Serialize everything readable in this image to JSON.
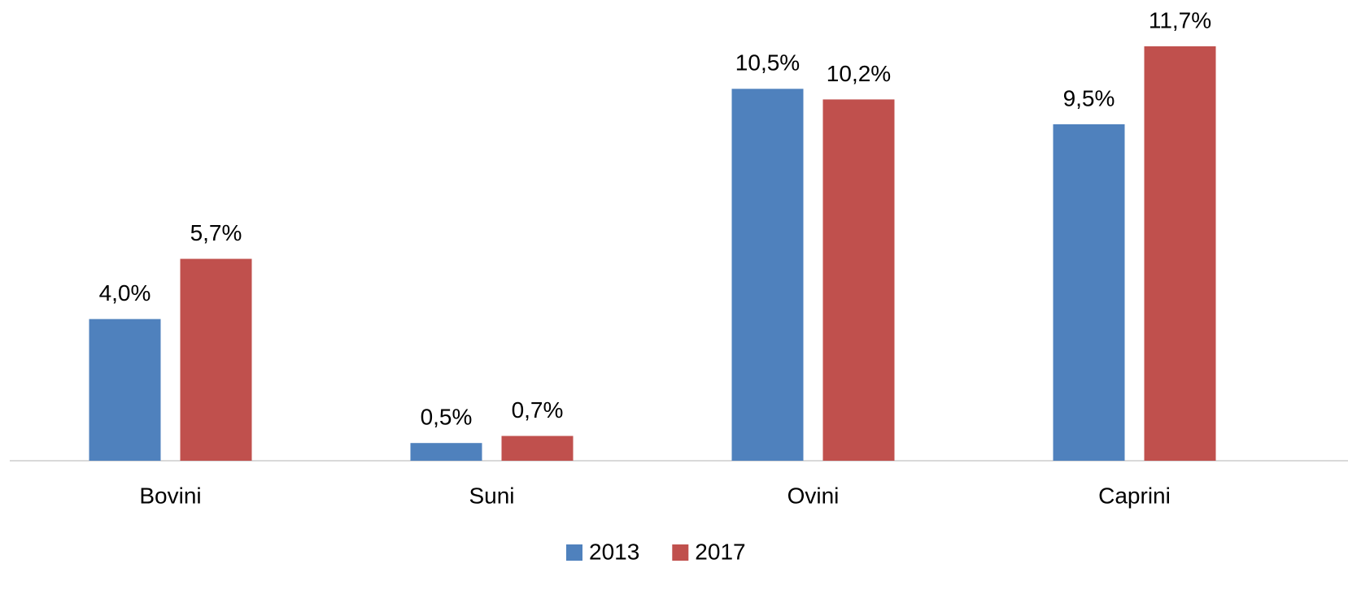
{
  "chart_data": {
    "type": "bar",
    "categories": [
      "Bovini",
      "Suni",
      "Ovini",
      "Caprini"
    ],
    "series": [
      {
        "name": "2013",
        "color": "#4f81bd",
        "values": [
          4.0,
          0.5,
          10.5,
          9.5
        ],
        "value_labels": [
          "4,0%",
          "0,5%",
          "10,5%",
          "9,5%"
        ]
      },
      {
        "name": "2017",
        "color": "#c0504d",
        "values": [
          5.7,
          0.7,
          10.2,
          11.7
        ],
        "value_labels": [
          "5,7%",
          "0,7%",
          "10,2%",
          "11,7%"
        ]
      }
    ],
    "legend": "bottom"
  }
}
